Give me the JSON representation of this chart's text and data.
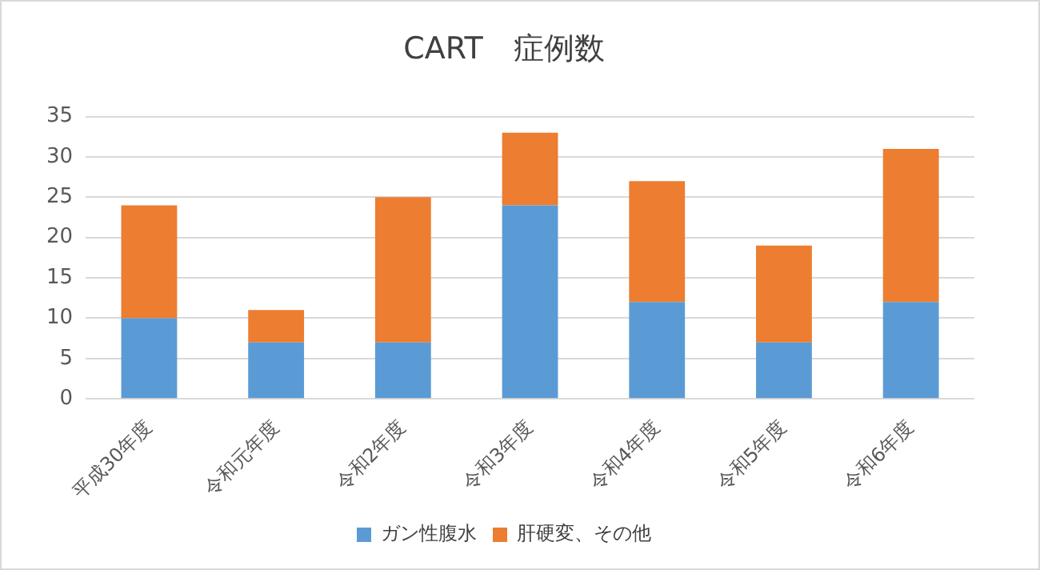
{
  "chart_data": {
    "type": "bar",
    "title": "CART　症例数",
    "categories": [
      "平成30年度",
      "令和元年度",
      "令和2年度",
      "令和3年度",
      "令和4年度",
      "令和5年度",
      "令和6年度"
    ],
    "stacked": true,
    "series": [
      {
        "name": "ガン性腹水",
        "color": "#5b9bd5",
        "values": [
          10,
          7,
          7,
          24,
          12,
          7,
          12
        ]
      },
      {
        "name": "肝硬変、その他",
        "color": "#ed7d31",
        "values": [
          14,
          4,
          18,
          9,
          15,
          12,
          19
        ]
      }
    ],
    "ylim": [
      0,
      35
    ],
    "yticks": [
      0,
      5,
      10,
      15,
      20,
      25,
      30,
      35
    ],
    "grid": "y",
    "legend": "bottom"
  }
}
